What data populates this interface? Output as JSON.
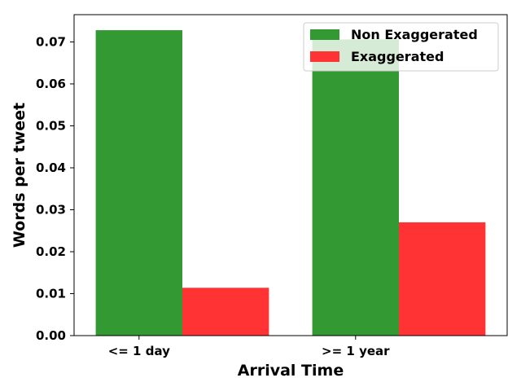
{
  "chart_data": {
    "type": "bar",
    "categories": [
      "<= 1 day",
      ">= 1 year"
    ],
    "series": [
      {
        "name": "Non Exaggerated",
        "values": [
          0.0728,
          0.0706
        ],
        "color": "#339933"
      },
      {
        "name": "Exaggerated",
        "values": [
          0.0114,
          0.027
        ],
        "color": "#ff3333"
      }
    ],
    "title": "",
    "xlabel": "Arrival Time",
    "ylabel": "Words per tweet",
    "ylim": [
      0,
      0.0765
    ],
    "yticks": [
      "0.00",
      "0.01",
      "0.02",
      "0.03",
      "0.04",
      "0.05",
      "0.06",
      "0.07"
    ],
    "grid": false,
    "legend_position": "top-right"
  }
}
